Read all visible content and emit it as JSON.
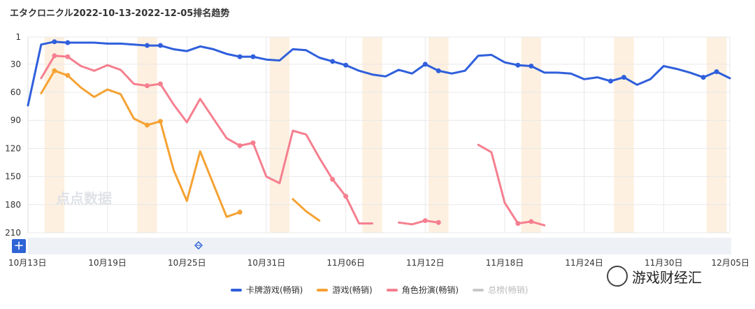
{
  "title": "エタクロニクル2022-10-13-2022-12-05排名趋势",
  "colors": {
    "blue": "#2f5fdb",
    "orange": "#f5a233",
    "pink": "#f57f8f",
    "gray": "#c8c8c8",
    "highlight": "#fdf0e0",
    "grid": "#e8e8e8"
  },
  "legend": [
    {
      "label": "卡牌游戏(畅销)",
      "color": "#2f5fdb"
    },
    {
      "label": "游戏(畅销)",
      "color": "#f5a233"
    },
    {
      "label": "角色扮演(畅销)",
      "color": "#f57f8f"
    },
    {
      "label": "总榜(畅销)",
      "color": "#c8c8c8"
    }
  ],
  "watermark": "游戏财经汇",
  "logo_text": "点点数据",
  "chart_data": {
    "type": "line",
    "x_start": "2022-10-13",
    "x_end": "2022-12-05",
    "xtick_labels": [
      "10月13日",
      "10月19日",
      "10月25日",
      "10月31日",
      "11月06日",
      "11月12日",
      "11月18日",
      "11月24日",
      "11月30日",
      "12月05日"
    ],
    "xtick_dates": [
      "2022-10-13",
      "2022-10-19",
      "2022-10-25",
      "2022-10-31",
      "2022-11-06",
      "2022-11-12",
      "2022-11-18",
      "2022-11-24",
      "2022-11-30",
      "2022-12-05"
    ],
    "ytick_labels": [
      "1",
      "30",
      "60",
      "90",
      "120",
      "150",
      "180",
      "210"
    ],
    "ytick_values": [
      1,
      30,
      60,
      90,
      120,
      150,
      180,
      210
    ],
    "ylim": [
      1,
      210
    ],
    "y_inverted": true,
    "highlight_dates": [
      "2022-10-15",
      "2022-10-22",
      "2022-11-01",
      "2022-11-08",
      "2022-11-13",
      "2022-11-20",
      "2022-11-27",
      "2022-12-04"
    ],
    "series": [
      {
        "name": "卡牌游戏(畅销)",
        "color": "#2f5fdb",
        "points": [
          [
            "2022-10-13",
            74
          ],
          [
            "2022-10-14",
            9
          ],
          [
            "2022-10-15",
            6
          ],
          [
            "2022-10-16",
            7
          ],
          [
            "2022-10-17",
            7
          ],
          [
            "2022-10-18",
            7
          ],
          [
            "2022-10-19",
            8
          ],
          [
            "2022-10-20",
            8
          ],
          [
            "2022-10-21",
            9
          ],
          [
            "2022-10-22",
            10
          ],
          [
            "2022-10-23",
            10
          ],
          [
            "2022-10-24",
            14
          ],
          [
            "2022-10-25",
            16
          ],
          [
            "2022-10-26",
            11
          ],
          [
            "2022-10-27",
            14
          ],
          [
            "2022-10-28",
            19
          ],
          [
            "2022-10-29",
            22
          ],
          [
            "2022-10-30",
            22
          ],
          [
            "2022-10-31",
            25
          ],
          [
            "2022-11-01",
            26
          ],
          [
            "2022-11-02",
            14
          ],
          [
            "2022-11-03",
            15
          ],
          [
            "2022-11-04",
            23
          ],
          [
            "2022-11-05",
            27
          ],
          [
            "2022-11-06",
            31
          ],
          [
            "2022-11-07",
            37
          ],
          [
            "2022-11-08",
            41
          ],
          [
            "2022-11-09",
            43
          ],
          [
            "2022-11-10",
            36
          ],
          [
            "2022-11-11",
            40
          ],
          [
            "2022-11-12",
            30
          ],
          [
            "2022-11-13",
            37
          ],
          [
            "2022-11-14",
            40
          ],
          [
            "2022-11-15",
            37
          ],
          [
            "2022-11-16",
            21
          ],
          [
            "2022-11-17",
            20
          ],
          [
            "2022-11-18",
            28
          ],
          [
            "2022-11-19",
            31
          ],
          [
            "2022-11-20",
            32
          ],
          [
            "2022-11-21",
            39
          ],
          [
            "2022-11-22",
            39
          ],
          [
            "2022-11-23",
            40
          ],
          [
            "2022-11-24",
            46
          ],
          [
            "2022-11-25",
            44
          ],
          [
            "2022-11-26",
            48
          ],
          [
            "2022-11-27",
            44
          ],
          [
            "2022-11-28",
            52
          ],
          [
            "2022-11-29",
            46
          ],
          [
            "2022-11-30",
            32
          ],
          [
            "2022-12-01",
            35
          ],
          [
            "2022-12-02",
            39
          ],
          [
            "2022-12-03",
            44
          ],
          [
            "2022-12-04",
            38
          ],
          [
            "2022-12-05",
            45
          ]
        ],
        "markers": [
          "2022-10-15",
          "2022-10-16",
          "2022-10-22",
          "2022-10-23",
          "2022-10-29",
          "2022-10-30",
          "2022-11-05",
          "2022-11-06",
          "2022-11-12",
          "2022-11-13",
          "2022-11-19",
          "2022-11-20",
          "2022-11-26",
          "2022-11-27",
          "2022-12-03",
          "2022-12-04"
        ]
      },
      {
        "name": "游戏(畅销)",
        "color": "#f5a233",
        "points": [
          [
            "2022-10-14",
            61
          ],
          [
            "2022-10-15",
            37
          ],
          [
            "2022-10-16",
            42
          ],
          [
            "2022-10-17",
            55
          ],
          [
            "2022-10-18",
            65
          ],
          [
            "2022-10-19",
            57
          ],
          [
            "2022-10-20",
            62
          ],
          [
            "2022-10-21",
            88
          ],
          [
            "2022-10-22",
            95
          ],
          [
            "2022-10-23",
            91
          ],
          [
            "2022-10-24",
            143
          ],
          [
            "2022-10-25",
            176
          ],
          [
            "2022-10-26",
            123
          ],
          [
            "2022-10-27",
            158
          ],
          [
            "2022-10-28",
            193
          ],
          [
            "2022-10-29",
            188
          ],
          null,
          [
            "2022-11-02",
            174
          ],
          [
            "2022-11-03",
            187
          ],
          [
            "2022-11-04",
            197
          ]
        ],
        "markers": [
          "2022-10-15",
          "2022-10-16",
          "2022-10-22",
          "2022-10-23",
          "2022-10-29"
        ]
      },
      {
        "name": "角色扮演(畅销)",
        "color": "#f57f8f",
        "points": [
          [
            "2022-10-14",
            45
          ],
          [
            "2022-10-15",
            21
          ],
          [
            "2022-10-16",
            22
          ],
          [
            "2022-10-17",
            32
          ],
          [
            "2022-10-18",
            37
          ],
          [
            "2022-10-19",
            31
          ],
          [
            "2022-10-20",
            36
          ],
          [
            "2022-10-21",
            51
          ],
          [
            "2022-10-22",
            53
          ],
          [
            "2022-10-23",
            51
          ],
          [
            "2022-10-24",
            73
          ],
          [
            "2022-10-25",
            92
          ],
          [
            "2022-10-26",
            67
          ],
          [
            "2022-10-27",
            88
          ],
          [
            "2022-10-28",
            109
          ],
          [
            "2022-10-29",
            117
          ],
          [
            "2022-10-30",
            114
          ],
          [
            "2022-10-31",
            150
          ],
          [
            "2022-11-01",
            157
          ],
          [
            "2022-11-02",
            101
          ],
          [
            "2022-11-03",
            105
          ],
          [
            "2022-11-04",
            130
          ],
          [
            "2022-11-05",
            153
          ],
          [
            "2022-11-06",
            171
          ],
          [
            "2022-11-07",
            200
          ],
          [
            "2022-11-08",
            200
          ],
          null,
          [
            "2022-11-10",
            199
          ],
          [
            "2022-11-11",
            201
          ],
          [
            "2022-11-12",
            197
          ],
          [
            "2022-11-13",
            199
          ],
          null,
          [
            "2022-11-16",
            116
          ],
          [
            "2022-11-17",
            124
          ],
          [
            "2022-11-18",
            178
          ],
          [
            "2022-11-19",
            200
          ],
          [
            "2022-11-20",
            198
          ],
          [
            "2022-11-21",
            202
          ]
        ],
        "markers": [
          "2022-10-15",
          "2022-10-16",
          "2022-10-22",
          "2022-10-23",
          "2022-10-29",
          "2022-10-30",
          "2022-11-05",
          "2022-11-06",
          "2022-11-12",
          "2022-11-13",
          "2022-11-19",
          "2022-11-20"
        ]
      }
    ]
  }
}
